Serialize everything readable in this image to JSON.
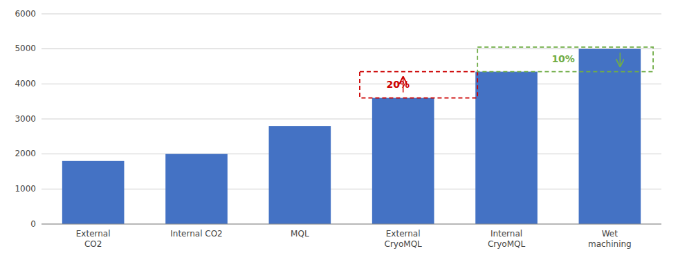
{
  "chart_data": {
    "type": "bar",
    "categories": [
      "External\nCO2",
      "Internal CO2",
      "MQL",
      "External\nCryoMQL",
      "Internal\nCryoMQL",
      "Wet\nmachining"
    ],
    "values": [
      1800,
      2000,
      2800,
      3600,
      4350,
      5000
    ],
    "color": "#4472C4",
    "ylim": [
      0,
      6000
    ],
    "yticks": [
      0,
      1000,
      2000,
      3000,
      4000,
      5000,
      6000
    ],
    "grid": true,
    "annotations": [
      {
        "text": "20%",
        "color": "#CC0000",
        "from": 3600,
        "to": 4350
      },
      {
        "text": "10%",
        "color": "#70AD47",
        "from": 5050,
        "to": 4350
      }
    ]
  }
}
